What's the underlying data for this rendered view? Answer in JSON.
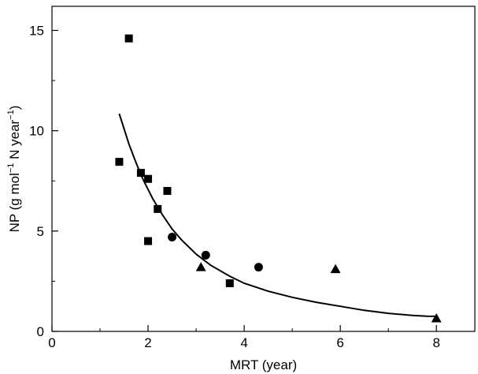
{
  "chart_data": {
    "type": "scatter",
    "title": "",
    "xlabel": "MRT (year)",
    "ylabel": {
      "prefix": "NP (g mol",
      "sup1": "−1",
      "mid": " N year",
      "sup2": "−1",
      "suffix": ")"
    },
    "xlim": [
      0,
      8.8
    ],
    "ylim": [
      0,
      16.2
    ],
    "x_ticks": [
      0,
      2,
      4,
      6,
      8
    ],
    "y_ticks": [
      0,
      5,
      10,
      15
    ],
    "grid": false,
    "legend": "none",
    "series": [
      {
        "marker": "square",
        "points": [
          [
            1.4,
            8.45
          ],
          [
            1.6,
            14.6
          ],
          [
            1.85,
            7.9
          ],
          [
            2.0,
            7.6
          ],
          [
            2.0,
            4.5
          ],
          [
            2.2,
            6.1
          ],
          [
            2.4,
            7.0
          ],
          [
            3.7,
            2.4
          ]
        ]
      },
      {
        "marker": "circle",
        "points": [
          [
            2.5,
            4.7
          ],
          [
            3.2,
            3.8
          ],
          [
            4.3,
            3.2
          ]
        ]
      },
      {
        "marker": "triangle",
        "points": [
          [
            3.1,
            3.2
          ],
          [
            5.9,
            3.1
          ],
          [
            8.0,
            0.65
          ]
        ]
      }
    ],
    "fit_curve": {
      "x": [
        1.4,
        1.5,
        1.6,
        1.75,
        1.9,
        2.1,
        2.3,
        2.5,
        2.7,
        3.0,
        3.3,
        3.7,
        4.0,
        4.5,
        5.0,
        5.5,
        6.0,
        6.5,
        7.0,
        7.5,
        7.8,
        8.0
      ],
      "y": [
        10.85,
        10.1,
        9.35,
        8.4,
        7.55,
        6.6,
        5.8,
        5.1,
        4.55,
        3.85,
        3.3,
        2.75,
        2.4,
        2.0,
        1.7,
        1.45,
        1.25,
        1.05,
        0.9,
        0.8,
        0.76,
        0.75
      ]
    }
  }
}
